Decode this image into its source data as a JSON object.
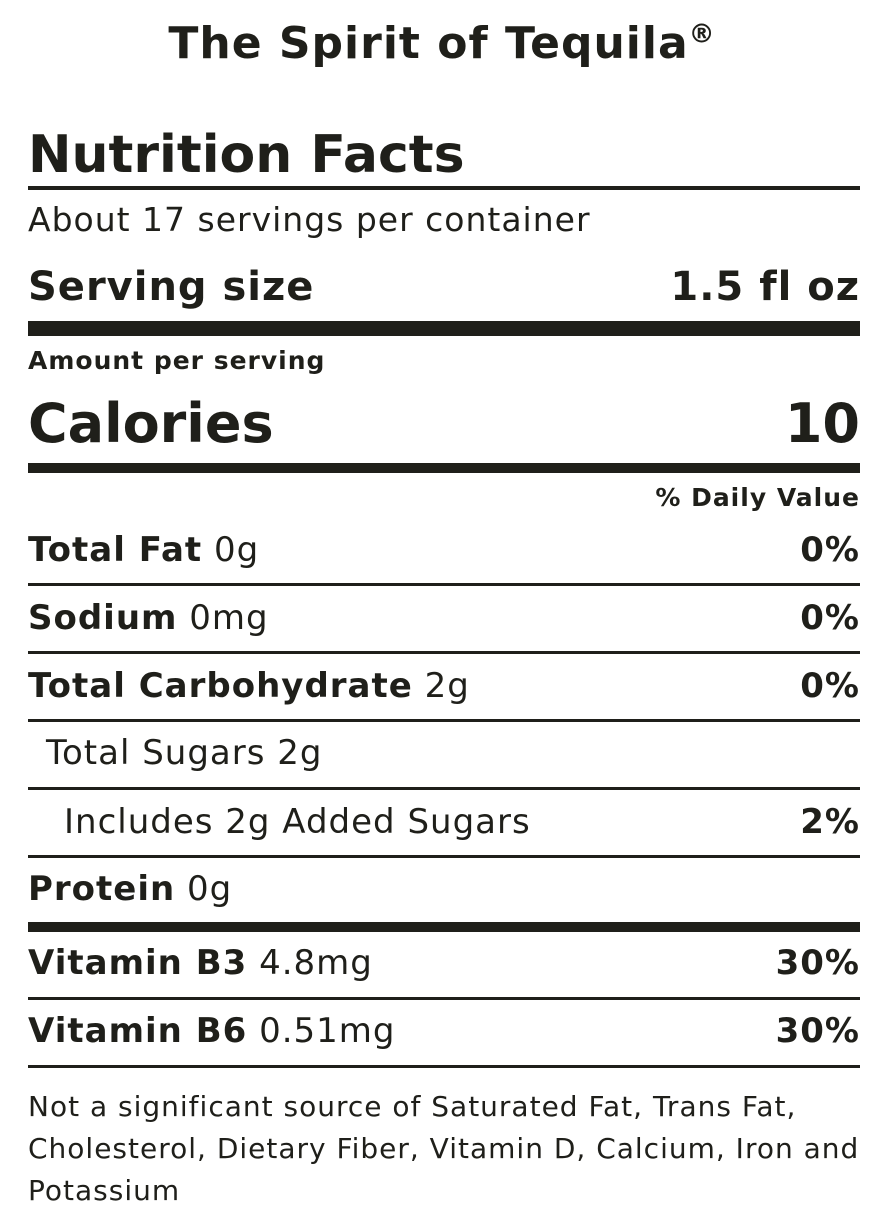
{
  "brand_title": "The Spirit of Tequila",
  "brand_mark": "®",
  "heading": "Nutrition Facts",
  "servings_per_container": "About 17 servings per container",
  "serving_size": {
    "label": "Serving size",
    "value": "1.5 fl oz"
  },
  "amount_per_serving": "Amount per serving",
  "calories": {
    "label": "Calories",
    "value": "10"
  },
  "daily_value_header": "% Daily Value",
  "nutrients": [
    {
      "label": "Total Fat",
      "amount": "0g",
      "dv": "0%"
    },
    {
      "label": "Sodium",
      "amount": "0mg",
      "dv": "0%"
    },
    {
      "label": "Total Carbohydrate",
      "amount": "2g",
      "dv": "0%"
    },
    {
      "label": "Total Sugars",
      "amount": "2g",
      "dv": ""
    },
    {
      "label": "Includes 2g Added Sugars",
      "amount": "",
      "dv": "2%"
    },
    {
      "label": "Protein",
      "amount": "0g",
      "dv": ""
    },
    {
      "label": "Vitamin B3",
      "amount": "4.8mg",
      "dv": "30%"
    },
    {
      "label": "Vitamin B6",
      "amount": "0.51mg",
      "dv": "30%"
    }
  ],
  "footnote": "Not a significant source of Saturated Fat, Trans Fat, Cholesterol, Dietary Fiber, Vitamin D, Calcium, Iron and Potassium"
}
